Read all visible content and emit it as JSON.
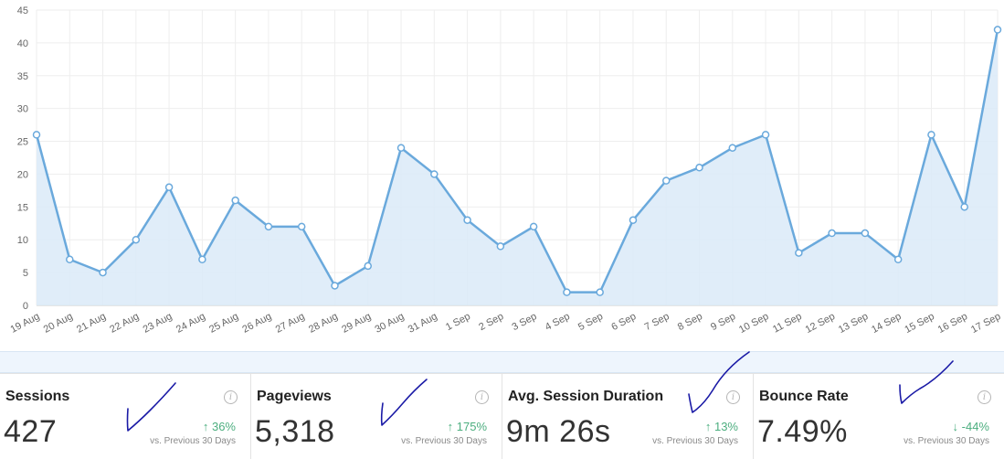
{
  "chart_data": {
    "type": "area",
    "categories": [
      "19 Aug",
      "20 Aug",
      "21 Aug",
      "22 Aug",
      "23 Aug",
      "24 Aug",
      "25 Aug",
      "26 Aug",
      "27 Aug",
      "28 Aug",
      "29 Aug",
      "30 Aug",
      "31 Aug",
      "1 Sep",
      "2 Sep",
      "3 Sep",
      "4 Sep",
      "5 Sep",
      "6 Sep",
      "7 Sep",
      "8 Sep",
      "9 Sep",
      "10 Sep",
      "11 Sep",
      "12 Sep",
      "13 Sep",
      "14 Sep",
      "15 Sep",
      "16 Sep",
      "17 Sep"
    ],
    "values": [
      26,
      7,
      5,
      10,
      18,
      7,
      16,
      12,
      12,
      3,
      6,
      24,
      20,
      13,
      9,
      12,
      2,
      2,
      13,
      19,
      21,
      24,
      26,
      8,
      11,
      11,
      7,
      26,
      15,
      42
    ],
    "ylim": [
      0,
      45
    ],
    "yticks": [
      0,
      5,
      10,
      15,
      20,
      25,
      30,
      35,
      40,
      45
    ],
    "grid": true,
    "colors": {
      "line": "#6aa9dc",
      "area": "#dbeaf8"
    }
  },
  "metrics": [
    {
      "title": "Sessions",
      "value": "427",
      "change": "36%",
      "direction": "up",
      "compare": "vs. Previous 30 Days"
    },
    {
      "title": "Pageviews",
      "value": "5,318",
      "change": "175%",
      "direction": "up",
      "compare": "vs. Previous 30 Days"
    },
    {
      "title": "Avg. Session Duration",
      "value": "9m 26s",
      "change": "13%",
      "direction": "up",
      "compare": "vs. Previous 30 Days"
    },
    {
      "title": "Bounce Rate",
      "value": "7.49%",
      "change": "-44%",
      "direction": "down",
      "compare": "vs. Previous 30 Days"
    }
  ],
  "icons": {
    "info": "info-icon",
    "up": "arrow-up-icon",
    "down": "arrow-down-icon"
  },
  "glyphs": {
    "info": "i",
    "up": "↑",
    "down": "↓"
  }
}
